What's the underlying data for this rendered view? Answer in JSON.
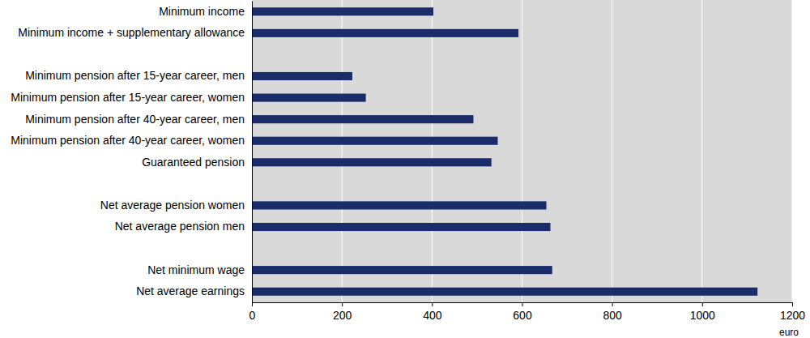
{
  "chart_data": {
    "type": "bar",
    "orientation": "horizontal",
    "categories": [
      "Minimum income",
      "Minimum income + supplementary allowance",
      null,
      "Minimum pension after 15-year career, men",
      "Minimum pension after 15-year career, women",
      "Minimum pension after 40-year career, men",
      "Minimum pension after 40-year career, women",
      "Guaranteed pension",
      null,
      "Net average pension women",
      "Net average pension men",
      null,
      "Net minimum wage",
      "Net average earnings"
    ],
    "values": [
      403,
      592,
      null,
      223,
      253,
      492,
      546,
      532,
      null,
      654,
      663,
      null,
      667,
      1123
    ],
    "color": "#1b2c6b",
    "x_label": "euro",
    "xlim": [
      0,
      1200
    ],
    "xticks": [
      0,
      200,
      400,
      600,
      800,
      1000,
      1200
    ],
    "grid": true
  }
}
